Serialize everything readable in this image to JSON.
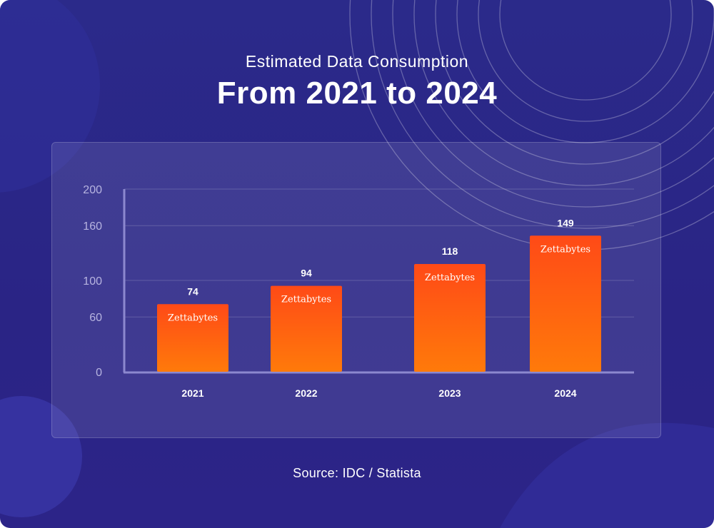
{
  "header": {
    "subtitle": "Estimated Data Consumption",
    "title": "From 2021 to 2024"
  },
  "footer": {
    "source": "Source: IDC / Statista"
  },
  "colors": {
    "background": "#2a2587",
    "bar_top": "#ff4a17",
    "bar_bottom": "#ff7a0a",
    "text": "#ffffff",
    "axis_tick": "#b7b4e0"
  },
  "chart_data": {
    "type": "bar",
    "title": "From 2021 to 2024",
    "subtitle": "Estimated Data Consumption",
    "categories": [
      "2021",
      "2022",
      "2023",
      "2024"
    ],
    "values": [
      74,
      94,
      118,
      149
    ],
    "bar_label": "Zettabytes",
    "xlabel": "",
    "ylabel": "",
    "ylim": [
      0,
      200
    ],
    "yticks": [
      0,
      60,
      100,
      160,
      200
    ],
    "grid": true
  }
}
